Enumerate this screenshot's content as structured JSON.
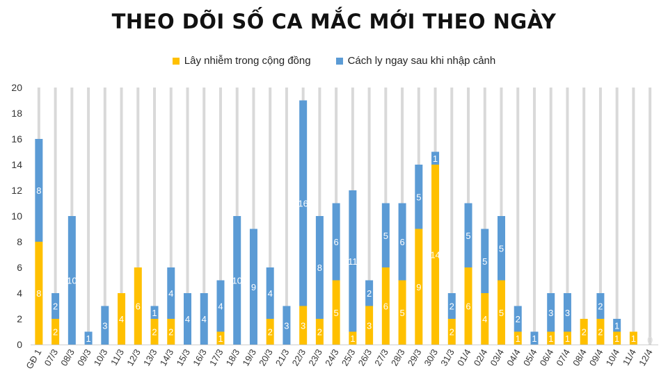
{
  "chart_data": {
    "type": "bar",
    "stacked": true,
    "title": "THEO DÕI SỐ CA MẮC MỚI THEO NGÀY",
    "legend_position": "top",
    "grid": "vertical",
    "ylim": [
      0,
      20
    ],
    "yticks": [
      0,
      2,
      4,
      6,
      8,
      10,
      12,
      14,
      16,
      18,
      20
    ],
    "categories": [
      "GĐ 1",
      "07/3",
      "08/3",
      "09/3",
      "10/3",
      "11/3",
      "12/3",
      "13/3",
      "14/3",
      "15/3",
      "16/3",
      "17/3",
      "18/3",
      "19/3",
      "20/3",
      "21/3",
      "22/3",
      "23/3",
      "24/3",
      "25/3",
      "26/3",
      "27/3",
      "28/3",
      "29/3",
      "30/3",
      "31/3",
      "01/4",
      "02/4",
      "03/4",
      "04/4",
      "05/4",
      "06/4",
      "07/4",
      "08/4",
      "09/4",
      "10/4",
      "11/4",
      "12/4"
    ],
    "series": [
      {
        "name": "Lây nhiễm trong cộng đồng",
        "color": "#ffc000",
        "values": [
          8,
          2,
          0,
          0,
          0,
          4,
          6,
          2,
          2,
          0,
          0,
          1,
          0,
          0,
          2,
          0,
          3,
          2,
          5,
          1,
          3,
          6,
          5,
          9,
          14,
          2,
          6,
          4,
          5,
          1,
          0,
          1,
          1,
          2,
          2,
          1,
          1,
          0
        ]
      },
      {
        "name": "Cách ly ngay sau khi nhập cảnh",
        "color": "#5b9bd5",
        "values": [
          8,
          2,
          10,
          1,
          3,
          0,
          0,
          1,
          4,
          4,
          4,
          4,
          10,
          9,
          4,
          3,
          16,
          8,
          6,
          11,
          2,
          5,
          6,
          5,
          1,
          2,
          5,
          5,
          5,
          2,
          1,
          3,
          3,
          0,
          2,
          1,
          0,
          0
        ]
      }
    ],
    "zero_labels": [
      "0"
    ]
  }
}
